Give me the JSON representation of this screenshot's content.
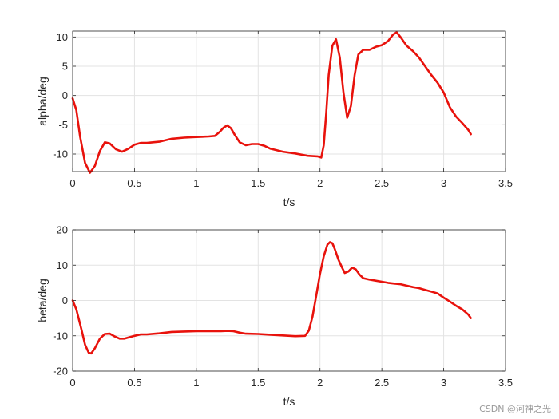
{
  "chart_data": [
    {
      "type": "line",
      "xlabel": "t/s",
      "ylabel": "alpha/deg",
      "xlim": [
        0,
        3.5
      ],
      "ylim": [
        -13,
        11
      ],
      "xticks": [
        "0",
        "0.5",
        "1",
        "1.5",
        "2",
        "2.5",
        "3",
        "3.5"
      ],
      "yticks": [
        "-10",
        "-5",
        "0",
        "5",
        "10"
      ],
      "grid": true,
      "series": [
        {
          "color": "#e8120c",
          "x": [
            0,
            0.03,
            0.06,
            0.1,
            0.14,
            0.18,
            0.22,
            0.26,
            0.3,
            0.35,
            0.4,
            0.45,
            0.5,
            0.55,
            0.6,
            0.7,
            0.8,
            0.9,
            1.0,
            1.1,
            1.15,
            1.19,
            1.22,
            1.25,
            1.28,
            1.31,
            1.35,
            1.4,
            1.45,
            1.5,
            1.55,
            1.6,
            1.7,
            1.8,
            1.9,
            1.98,
            2.01,
            2.03,
            2.05,
            2.07,
            2.1,
            2.13,
            2.16,
            2.19,
            2.22,
            2.25,
            2.28,
            2.31,
            2.35,
            2.4,
            2.45,
            2.5,
            2.55,
            2.59,
            2.62,
            2.65,
            2.7,
            2.75,
            2.8,
            2.85,
            2.9,
            2.95,
            3.0,
            3.05,
            3.1,
            3.15,
            3.2,
            3.22
          ],
          "y": [
            -0.5,
            -2.5,
            -7,
            -11.5,
            -13.2,
            -12,
            -9.5,
            -8,
            -8.2,
            -9.2,
            -9.6,
            -9.1,
            -8.4,
            -8.1,
            -8.1,
            -7.9,
            -7.4,
            -7.2,
            -7.1,
            -7.0,
            -6.9,
            -6.2,
            -5.5,
            -5.1,
            -5.6,
            -6.7,
            -8.0,
            -8.5,
            -8.3,
            -8.3,
            -8.6,
            -9.1,
            -9.6,
            -9.9,
            -10.3,
            -10.4,
            -10.6,
            -8.5,
            -3,
            3.5,
            8.5,
            9.6,
            6.5,
            0.5,
            -3.8,
            -1.8,
            3.5,
            7.0,
            7.8,
            7.8,
            8.3,
            8.6,
            9.3,
            10.4,
            10.8,
            10.0,
            8.5,
            7.6,
            6.5,
            5.0,
            3.5,
            2.2,
            0.5,
            -2.0,
            -3.6,
            -4.7,
            -5.9,
            -6.6
          ]
        }
      ]
    },
    {
      "type": "line",
      "xlabel": "t/s",
      "ylabel": "beta/deg",
      "xlim": [
        0,
        3.5
      ],
      "ylim": [
        -20,
        20
      ],
      "xticks": [
        "0",
        "0.5",
        "1",
        "1.5",
        "2",
        "2.5",
        "3",
        "3.5"
      ],
      "yticks": [
        "-20",
        "-10",
        "0",
        "10",
        "20"
      ],
      "grid": true,
      "series": [
        {
          "color": "#e8120c",
          "x": [
            0,
            0.03,
            0.07,
            0.1,
            0.13,
            0.15,
            0.18,
            0.22,
            0.26,
            0.3,
            0.34,
            0.38,
            0.42,
            0.46,
            0.5,
            0.55,
            0.6,
            0.7,
            0.8,
            0.9,
            1.0,
            1.1,
            1.2,
            1.25,
            1.3,
            1.35,
            1.4,
            1.5,
            1.6,
            1.7,
            1.8,
            1.88,
            1.91,
            1.94,
            1.97,
            2.0,
            2.03,
            2.06,
            2.08,
            2.1,
            2.12,
            2.15,
            2.18,
            2.2,
            2.23,
            2.26,
            2.29,
            2.32,
            2.35,
            2.4,
            2.45,
            2.5,
            2.55,
            2.6,
            2.65,
            2.7,
            2.75,
            2.8,
            2.85,
            2.9,
            2.95,
            3.0,
            3.05,
            3.1,
            3.15,
            3.2,
            3.22
          ],
          "y": [
            0,
            -2.5,
            -8,
            -12.5,
            -14.8,
            -15,
            -13.5,
            -10.8,
            -9.5,
            -9.4,
            -10.2,
            -10.8,
            -10.8,
            -10.4,
            -10.0,
            -9.6,
            -9.6,
            -9.3,
            -8.9,
            -8.8,
            -8.7,
            -8.7,
            -8.7,
            -8.6,
            -8.7,
            -9.1,
            -9.4,
            -9.5,
            -9.7,
            -9.9,
            -10.1,
            -10.0,
            -8.5,
            -4.5,
            1.5,
            7.5,
            12.5,
            15.8,
            16.5,
            16.2,
            14.5,
            11.5,
            9.2,
            7.8,
            8.2,
            9.3,
            8.8,
            7.3,
            6.3,
            5.9,
            5.6,
            5.3,
            5.0,
            4.8,
            4.6,
            4.2,
            3.8,
            3.5,
            3.0,
            2.5,
            2.0,
            0.8,
            -0.3,
            -1.5,
            -2.5,
            -4.0,
            -5.0
          ]
        }
      ]
    }
  ],
  "watermark": "CSDN @河神之光"
}
